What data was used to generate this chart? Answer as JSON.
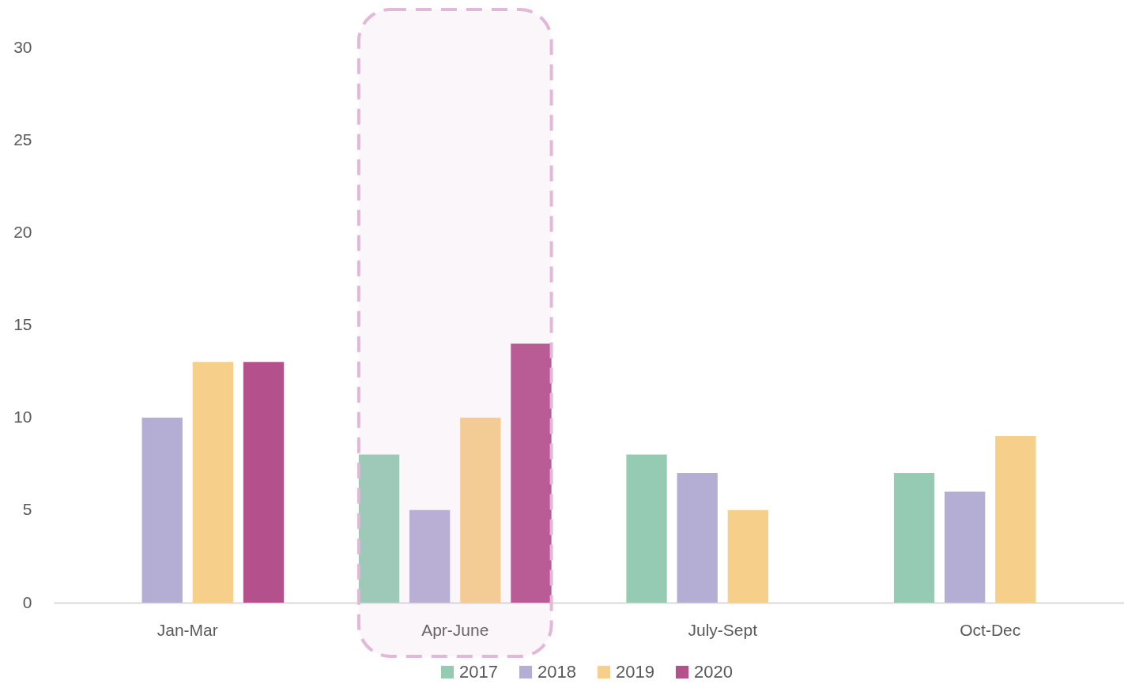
{
  "chart_data": {
    "type": "bar",
    "categories": [
      "Jan-Mar",
      "Apr-June",
      "July-Sept",
      "Oct-Dec"
    ],
    "series": [
      {
        "name": "2017",
        "color": "#96cbb3",
        "values": [
          null,
          8,
          8,
          7
        ]
      },
      {
        "name": "2018",
        "color": "#b4aed4",
        "values": [
          10,
          5,
          7,
          6
        ]
      },
      {
        "name": "2019",
        "color": "#f6cf8b",
        "values": [
          13,
          10,
          5,
          9
        ]
      },
      {
        "name": "2020",
        "color": "#b4508c",
        "values": [
          13,
          14,
          null,
          null
        ]
      }
    ],
    "bands": [
      {
        "axis": "x",
        "from": "Apr-June",
        "to": "Apr-June",
        "color": "#e2b8d8"
      }
    ],
    "ylim": [
      0,
      30
    ],
    "yticks": [
      0,
      5,
      10,
      15,
      20,
      25,
      30
    ],
    "grid": false,
    "legend": "bottom"
  }
}
